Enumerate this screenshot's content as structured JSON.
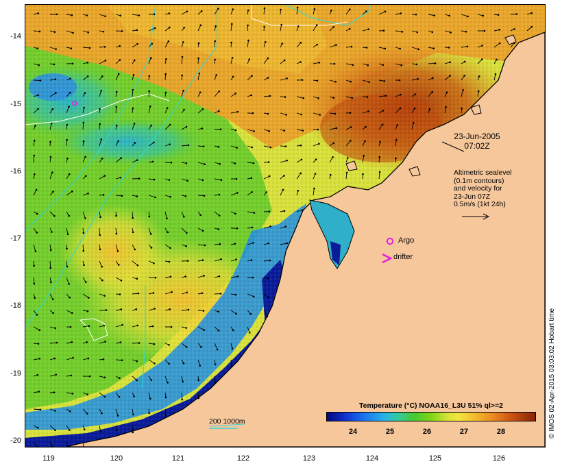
{
  "latitude_labels": [
    "-14",
    "-15",
    "-16",
    "-17",
    "-18",
    "-19",
    "-20"
  ],
  "longitude_labels": [
    "119",
    "120",
    "121",
    "122",
    "123",
    "124",
    "125",
    "126"
  ],
  "annotations": {
    "date": "23-Jun-2005",
    "time": "07:02Z",
    "altimetry_lines": [
      "Altimetric sealevel",
      "(0.1m contours)",
      "and velocity for",
      "23-Jun 07Z",
      "0.5m/s (1kt 24h)"
    ],
    "argo": "Argo",
    "drifter": "drifter",
    "contours": "200 1000m"
  },
  "colorbar": {
    "title": "Temperature (°C) NOAA16_L3U 51% ql>=2",
    "ticks": [
      "24",
      "25",
      "26",
      "27",
      "28"
    ]
  },
  "credit": "© IMOS 02-Apr-2015 03:03:02 Hobart time",
  "colors": {
    "land": "#f7c79c",
    "coastline": "#000000",
    "bathymetry_contour": "#2ed6d6",
    "argo_marker": "#e020e0",
    "drifter_marker": "#e020e0",
    "arrow": "#000000"
  }
}
